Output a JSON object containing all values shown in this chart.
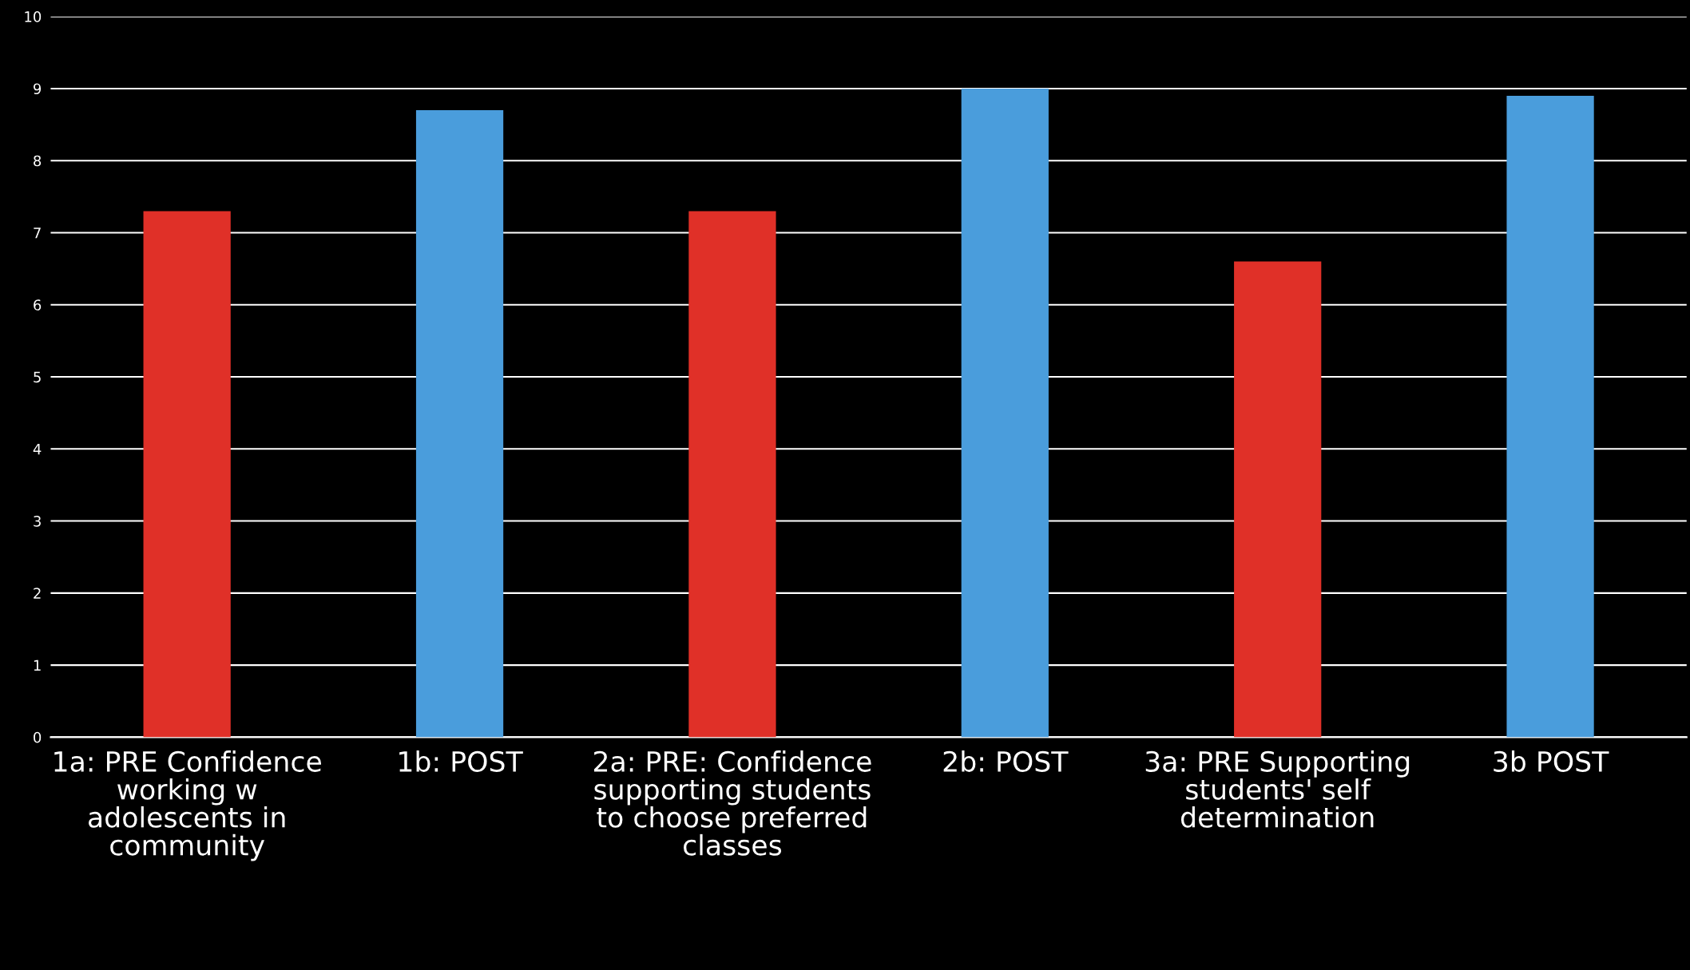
{
  "chart_data": {
    "type": "bar",
    "categories": [
      "1a: PRE Confidence working w adolescents in community",
      "1b: POST",
      "2a: PRE: Confidence supporting students to choose preferred classes",
      "2b: POST",
      "3a: PRE Supporting students' self determination",
      "3b POST"
    ],
    "values": [
      7.3,
      8.7,
      7.3,
      9,
      6.6,
      8.9
    ],
    "colors": [
      "#e03028",
      "#4a9ddc",
      "#e03028",
      "#4a9ddc",
      "#e03028",
      "#4a9ddc"
    ],
    "ylim": [
      0,
      10
    ],
    "yticks": [
      0,
      1,
      2,
      3,
      4,
      5,
      6,
      7,
      8,
      9,
      10
    ],
    "grid": "y"
  }
}
